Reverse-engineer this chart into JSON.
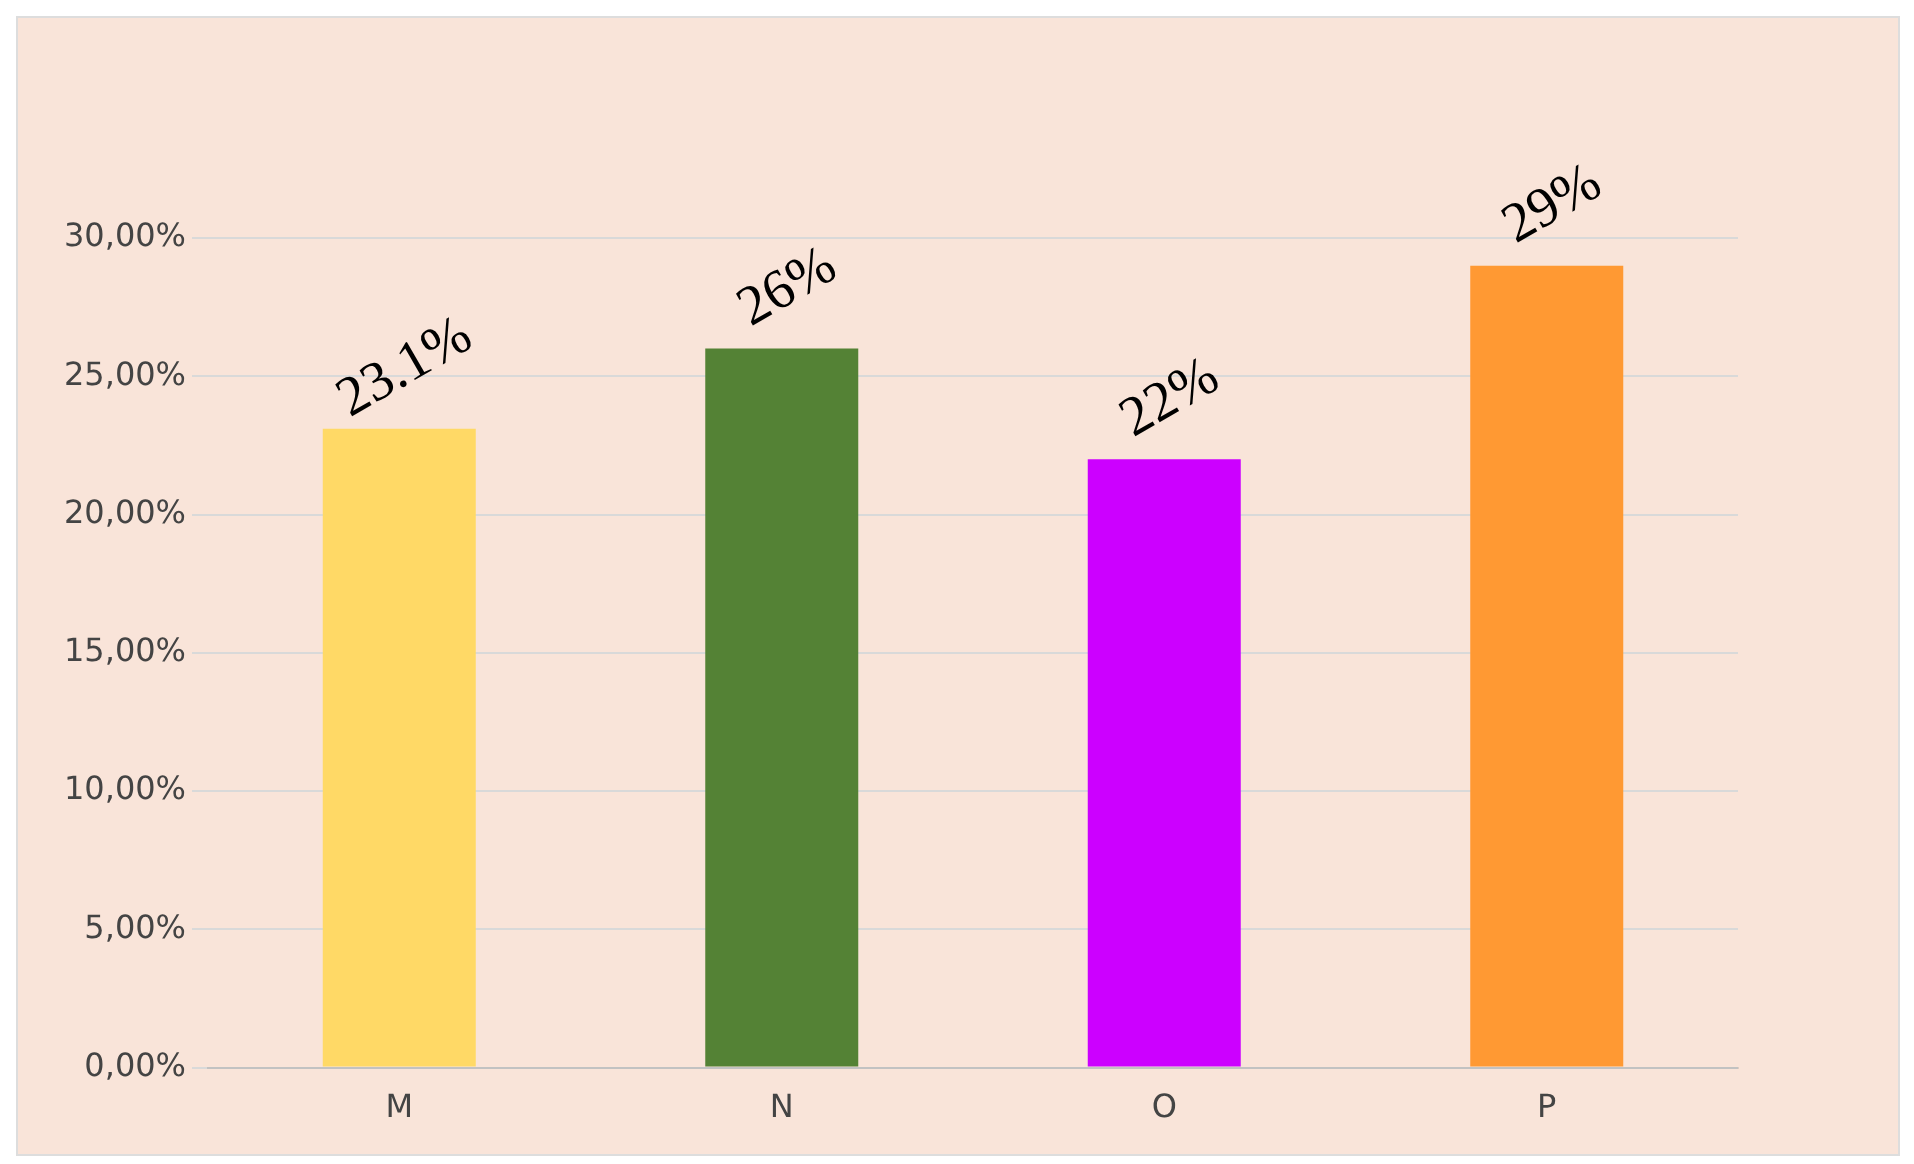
{
  "chart_data": {
    "type": "bar",
    "categories": [
      "M",
      "N",
      "O",
      "P"
    ],
    "values": [
      23.1,
      26,
      22,
      29
    ],
    "colors": [
      "#ffd966",
      "#548235",
      "#cc00ff",
      "#ff9933"
    ],
    "value_labels": [
      "23.1%",
      "26%",
      "22%",
      "29%"
    ],
    "ylim": [
      0,
      30
    ],
    "yticks": [
      {
        "value": 0,
        "label": "0,00%"
      },
      {
        "value": 5,
        "label": "5,00%"
      },
      {
        "value": 10,
        "label": "10,00%"
      },
      {
        "value": 15,
        "label": "15,00%"
      },
      {
        "value": 20,
        "label": "20,00%"
      },
      {
        "value": 25,
        "label": "25,00%"
      },
      {
        "value": 30,
        "label": "30,00%"
      }
    ],
    "grid": "y",
    "legend": false
  }
}
